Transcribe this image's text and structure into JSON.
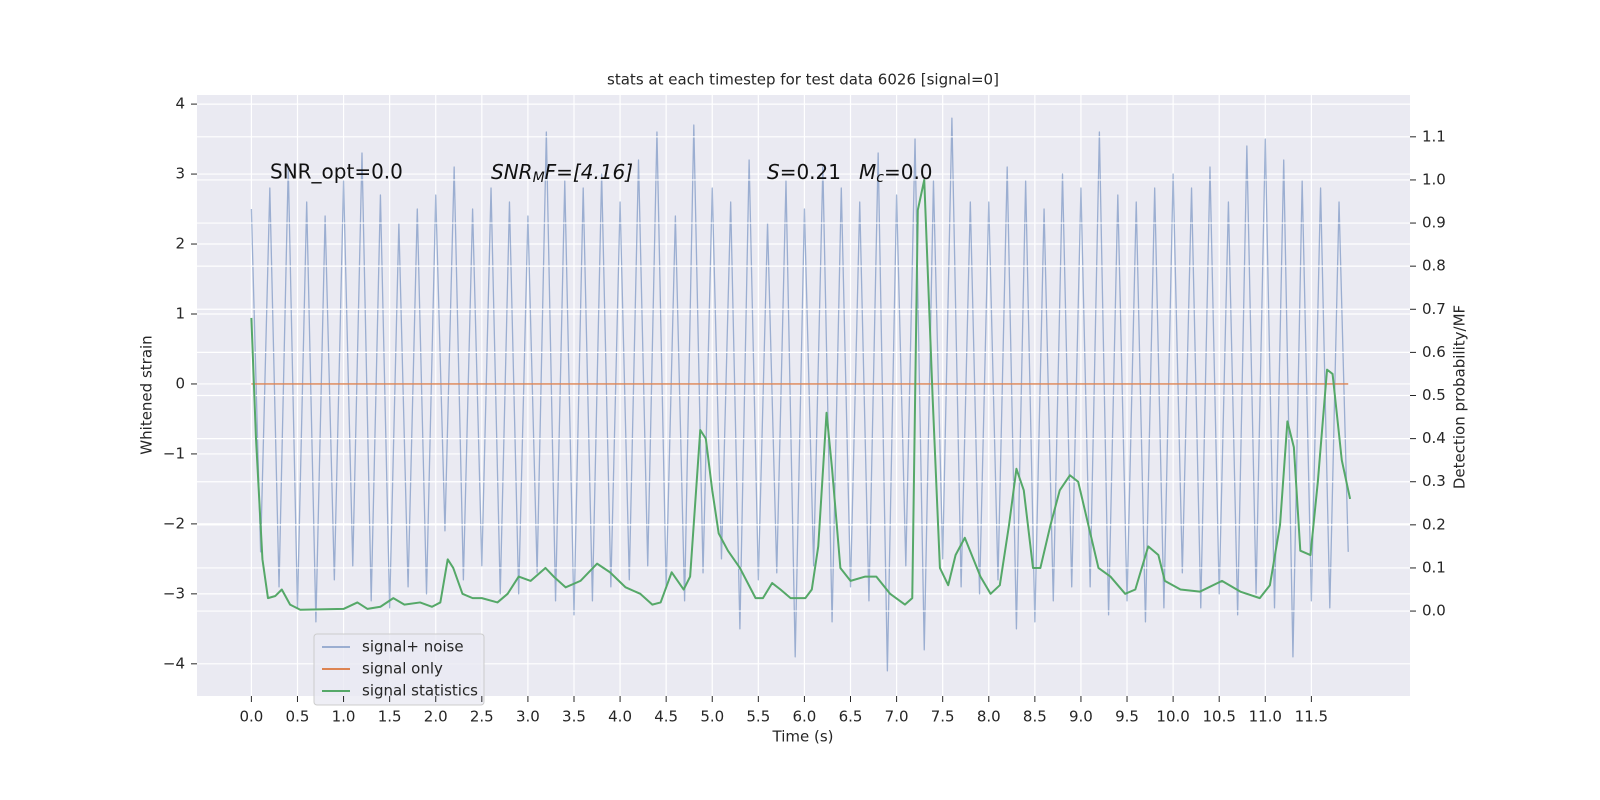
{
  "chart_data": {
    "type": "line",
    "title": "stats at each timestep for test data 6026 [signal=0]",
    "xlabel": "Time (s)",
    "ylabel": "Whitened strain",
    "y2label": "Detection probability/MF",
    "annotations": {
      "snr_opt": "SNR_opt=0.0",
      "snr_mf": {
        "base": "SNR",
        "sub": "M",
        "rest": "F=[4.16]"
      },
      "s": {
        "symbol": "S",
        "rest": "=0.21"
      },
      "mc": {
        "symbol": "M",
        "sub": "c",
        "rest": "=0.0"
      }
    },
    "xlim": [
      -0.59,
      12.57
    ],
    "ylim": [
      -4.46,
      4.13
    ],
    "y2lim": [
      -0.197,
      1.197
    ],
    "xticks": [
      {
        "value": 0,
        "label": "0.0"
      },
      {
        "value": 0.5,
        "label": "0.5"
      },
      {
        "value": 1,
        "label": "1.0"
      },
      {
        "value": 1.5,
        "label": "1.5"
      },
      {
        "value": 2,
        "label": "2.0"
      },
      {
        "value": 2.5,
        "label": "2.5"
      },
      {
        "value": 3,
        "label": "3.0"
      },
      {
        "value": 3.5,
        "label": "3.5"
      },
      {
        "value": 4,
        "label": "4.0"
      },
      {
        "value": 4.5,
        "label": "4.5"
      },
      {
        "value": 5,
        "label": "5.0"
      },
      {
        "value": 5.5,
        "label": "5.5"
      },
      {
        "value": 6,
        "label": "6.0"
      },
      {
        "value": 6.5,
        "label": "6.5"
      },
      {
        "value": 7,
        "label": "7.0"
      },
      {
        "value": 7.5,
        "label": "7.5"
      },
      {
        "value": 8,
        "label": "8.0"
      },
      {
        "value": 8.5,
        "label": "8.5"
      },
      {
        "value": 9,
        "label": "9.0"
      },
      {
        "value": 9.5,
        "label": "9.5"
      },
      {
        "value": 10,
        "label": "10.0"
      },
      {
        "value": 10.5,
        "label": "10.5"
      },
      {
        "value": 11,
        "label": "11.0"
      },
      {
        "value": 11.5,
        "label": "11.5"
      }
    ],
    "yticks": [
      {
        "value": -4,
        "label": "−4"
      },
      {
        "value": -3,
        "label": "−3"
      },
      {
        "value": -2,
        "label": "−2"
      },
      {
        "value": -1,
        "label": "−1"
      },
      0,
      1,
      2,
      3,
      4
    ],
    "y2ticks": [
      {
        "value": 0,
        "label": "0.0"
      },
      {
        "value": 0.1,
        "label": "0.1"
      },
      {
        "value": 0.2,
        "label": "0.2"
      },
      {
        "value": 0.3,
        "label": "0.3"
      },
      {
        "value": 0.4,
        "label": "0.4"
      },
      {
        "value": 0.5,
        "label": "0.5"
      },
      {
        "value": 0.6,
        "label": "0.6"
      },
      {
        "value": 0.7,
        "label": "0.7"
      },
      {
        "value": 0.8,
        "label": "0.8"
      },
      {
        "value": 0.9,
        "label": "0.9"
      },
      {
        "value": 1,
        "label": "1.0"
      },
      {
        "value": 1.1,
        "label": "1.1"
      }
    ],
    "grid": true,
    "legend": "lower left",
    "series": [
      {
        "name": "signal+ noise",
        "color": "#4c72b0",
        "alpha": 0.5,
        "x": [
          0,
          0.1,
          0.2,
          0.3,
          0.4,
          0.5,
          0.6,
          0.7,
          0.8,
          0.9,
          1,
          1.1,
          1.2,
          1.3,
          1.4,
          1.5,
          1.6,
          1.7,
          1.8,
          1.9,
          2,
          2.1,
          2.2,
          2.3,
          2.4,
          2.5,
          2.6,
          2.7,
          2.8,
          2.9,
          3,
          3.1,
          3.2,
          3.3,
          3.4,
          3.5,
          3.6,
          3.7,
          3.8,
          3.9,
          4,
          4.1,
          4.2,
          4.3,
          4.4,
          4.5,
          4.6,
          4.7,
          4.8,
          4.9,
          5,
          5.1,
          5.2,
          5.3,
          5.4,
          5.5,
          5.6,
          5.7,
          5.8,
          5.9,
          6,
          6.1,
          6.2,
          6.3,
          6.4,
          6.5,
          6.6,
          6.7,
          6.8,
          6.9,
          7,
          7.1,
          7.2,
          7.3,
          7.4,
          7.5,
          7.6,
          7.7,
          7.8,
          7.9,
          8,
          8.1,
          8.2,
          8.3,
          8.4,
          8.5,
          8.6,
          8.7,
          8.8,
          8.9,
          9,
          9.1,
          9.2,
          9.3,
          9.4,
          9.5,
          9.6,
          9.7,
          9.8,
          9.9,
          10,
          10.1,
          10.2,
          10.3,
          10.4,
          10.5,
          10.6,
          10.7,
          10.8,
          10.9,
          11,
          11.1,
          11.2,
          11.3,
          11.4,
          11.5,
          11.6,
          11.7,
          11.8,
          11.9
        ],
        "values": [
          2.5,
          -2.4,
          2.8,
          -2.9,
          3.1,
          -3.2,
          2.6,
          -3.4,
          2.4,
          -2.8,
          2.9,
          -2.6,
          3.3,
          -3.1,
          2.7,
          -3.2,
          2.3,
          -2.9,
          2.5,
          -3.0,
          2.7,
          -2.1,
          3.1,
          -2.8,
          2.5,
          -2.6,
          2.8,
          -3.0,
          2.6,
          -3.0,
          2.4,
          -2.7,
          3.6,
          -3.1,
          2.9,
          -3.3,
          2.8,
          -3.1,
          3.0,
          -2.9,
          2.6,
          -2.8,
          3.2,
          -2.6,
          3.6,
          -2.9,
          2.4,
          -3.1,
          3.7,
          -2.7,
          2.8,
          -2.5,
          2.6,
          -3.5,
          3.2,
          -2.8,
          2.3,
          -2.7,
          2.9,
          -3.9,
          2.5,
          -2.6,
          3.1,
          -3.4,
          2.8,
          -2.9,
          2.6,
          -3.1,
          3.3,
          -4.1,
          2.7,
          -2.6,
          3.5,
          -3.8,
          2.9,
          -2.5,
          3.8,
          -2.9,
          2.6,
          -3.0,
          2.6,
          -2.8,
          3.1,
          -3.5,
          2.9,
          -3.4,
          2.5,
          -3.1,
          3.0,
          -2.9,
          2.8,
          -2.9,
          3.6,
          -3.3,
          2.7,
          -3.1,
          2.6,
          -3.4,
          2.8,
          -3.2,
          3.0,
          -2.7,
          2.8,
          -3.2,
          3.1,
          -3.0,
          2.6,
          -3.3,
          3.4,
          -3.0,
          3.5,
          -3.2,
          3.2,
          -3.9,
          2.9,
          -3.1,
          2.8,
          -3.2,
          2.6,
          -2.4
        ]
      },
      {
        "name": "signal only",
        "color": "#dd8452",
        "x": [
          0,
          11.9
        ],
        "values": [
          0,
          0
        ]
      },
      {
        "name": "signal statistics",
        "color": "#55a868",
        "axis": "y2",
        "x": [
          0,
          0.05,
          0.12,
          0.18,
          0.26,
          0.33,
          0.42,
          0.53,
          1.0,
          1.15,
          1.26,
          1.4,
          1.54,
          1.66,
          1.83,
          1.96,
          2.05,
          2.13,
          2.19,
          2.29,
          2.4,
          2.5,
          2.67,
          2.78,
          2.9,
          3.03,
          3.19,
          3.28,
          3.41,
          3.57,
          3.75,
          3.89,
          4.06,
          4.22,
          4.35,
          4.44,
          4.56,
          4.69,
          4.76,
          4.87,
          4.93,
          5.0,
          5.07,
          5.17,
          5.3,
          5.47,
          5.55,
          5.65,
          5.74,
          5.85,
          6.01,
          6.08,
          6.15,
          6.24,
          6.3,
          6.39,
          6.5,
          6.66,
          6.78,
          6.93,
          7.09,
          7.17,
          7.23,
          7.3,
          7.39,
          7.47,
          7.56,
          7.64,
          7.74,
          7.91,
          8.02,
          8.12,
          8.22,
          8.3,
          8.38,
          8.48,
          8.56,
          8.67,
          8.77,
          8.88,
          8.97,
          9.08,
          9.19,
          9.32,
          9.48,
          9.59,
          9.73,
          9.84,
          9.91,
          10.08,
          10.29,
          10.53,
          10.73,
          10.94,
          11.05,
          11.16,
          11.24,
          11.31,
          11.38,
          11.49,
          11.57,
          11.67,
          11.73,
          11.83,
          11.92
        ],
        "values": [
          0.68,
          0.4,
          0.12,
          0.03,
          0.035,
          0.05,
          0.015,
          0.003,
          0.005,
          0.02,
          0.005,
          0.01,
          0.03,
          0.015,
          0.02,
          0.01,
          0.02,
          0.12,
          0.1,
          0.04,
          0.03,
          0.03,
          0.02,
          0.04,
          0.08,
          0.07,
          0.1,
          0.08,
          0.055,
          0.07,
          0.11,
          0.09,
          0.055,
          0.04,
          0.015,
          0.02,
          0.09,
          0.05,
          0.08,
          0.42,
          0.4,
          0.28,
          0.18,
          0.14,
          0.1,
          0.03,
          0.03,
          0.065,
          0.05,
          0.03,
          0.03,
          0.05,
          0.15,
          0.46,
          0.33,
          0.1,
          0.07,
          0.08,
          0.08,
          0.04,
          0.015,
          0.03,
          0.93,
          1.0,
          0.5,
          0.1,
          0.06,
          0.13,
          0.17,
          0.08,
          0.04,
          0.06,
          0.2,
          0.33,
          0.28,
          0.1,
          0.1,
          0.2,
          0.28,
          0.315,
          0.3,
          0.2,
          0.1,
          0.08,
          0.04,
          0.05,
          0.15,
          0.13,
          0.07,
          0.05,
          0.045,
          0.07,
          0.045,
          0.03,
          0.06,
          0.2,
          0.44,
          0.38,
          0.14,
          0.13,
          0.3,
          0.56,
          0.55,
          0.35,
          0.26
        ]
      }
    ]
  }
}
